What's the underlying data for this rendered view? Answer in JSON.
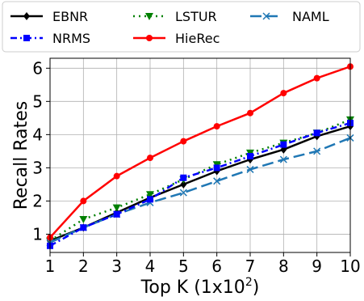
{
  "chart_data": {
    "type": "line",
    "xlabel": "Top K (1x10",
    "xlabel_sup": "2",
    "xlabel_close": ")",
    "ylabel": "Recall Rates",
    "x": [
      1,
      2,
      3,
      4,
      5,
      6,
      7,
      8,
      9,
      10
    ],
    "xlim": [
      1,
      10
    ],
    "ylim": [
      0.45,
      6.3
    ],
    "xticks": [
      "1",
      "2",
      "3",
      "4",
      "5",
      "6",
      "7",
      "8",
      "9",
      "10"
    ],
    "yticks": [
      "1",
      "2",
      "3",
      "4",
      "5",
      "6"
    ],
    "grid": true,
    "legend_position": "top",
    "series": [
      {
        "name": "EBNR",
        "color": "#000000",
        "dash": "",
        "marker": "diamond",
        "values": [
          0.8,
          1.2,
          1.65,
          2.1,
          2.5,
          2.9,
          3.25,
          3.55,
          3.95,
          4.25
        ]
      },
      {
        "name": "LSTUR",
        "color": "#008000",
        "dash": "2,5",
        "marker": "triangle-down",
        "values": [
          0.8,
          1.45,
          1.8,
          2.2,
          2.65,
          3.1,
          3.45,
          3.75,
          4.05,
          4.45
        ]
      },
      {
        "name": "NAML",
        "color": "#1f77b4",
        "dash": "14,6",
        "marker": "x",
        "values": [
          0.75,
          1.2,
          1.6,
          1.95,
          2.25,
          2.6,
          2.95,
          3.25,
          3.5,
          3.9
        ]
      },
      {
        "name": "NRMS",
        "color": "#0000ff",
        "dash": "8,4,2,4",
        "marker": "square",
        "values": [
          0.65,
          1.2,
          1.6,
          2.05,
          2.7,
          3.0,
          3.35,
          3.7,
          4.05,
          4.35
        ]
      },
      {
        "name": "HieRec",
        "color": "#ff0000",
        "dash": "",
        "marker": "circle",
        "values": [
          0.9,
          2.0,
          2.75,
          3.3,
          3.8,
          4.25,
          4.65,
          5.25,
          5.7,
          6.05
        ]
      }
    ]
  }
}
